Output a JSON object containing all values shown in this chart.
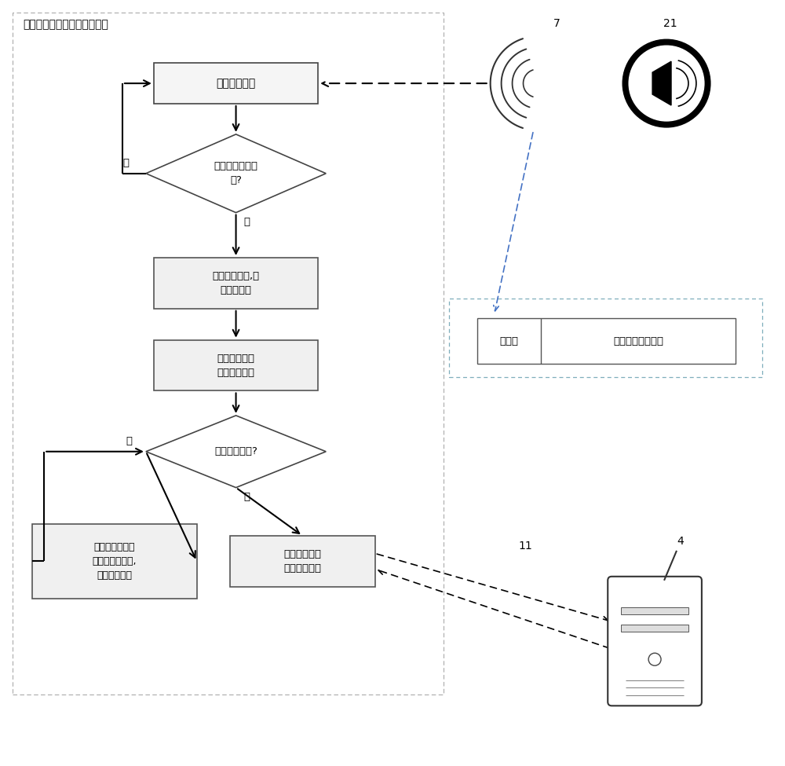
{
  "title": "音频特征信息采集程序流程图",
  "box1_text": "检测音频信号",
  "box2_text": "解调音频样本,得\n到标识信息",
  "box3_text": "将标识信息与\n用户标识加密",
  "diamond1_text": "发现音频特征信\n息?",
  "diamond2_text": "网络是否连接?",
  "box4_text": "将标识信息与用\n户信息暂时存储,\n延时检测网络",
  "box5_text": "发送到反馈信\n息采集服务器",
  "signal_header": "信号头",
  "payload_text": "特征信息有效载荷",
  "label_no1": "否",
  "label_yes1": "是",
  "label_no2": "否",
  "label_yes2": "是",
  "label_7": "7",
  "label_21": "21",
  "label_11": "11",
  "label_4": "4"
}
